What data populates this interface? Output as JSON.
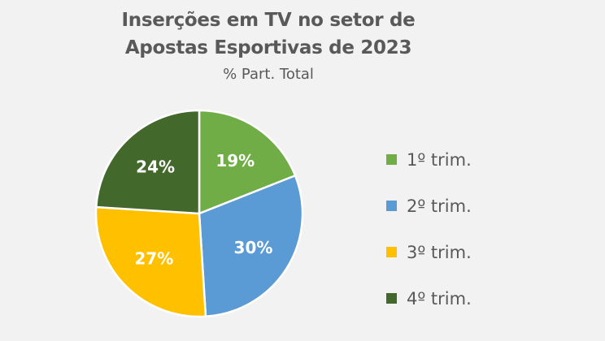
{
  "chart_data": {
    "type": "pie",
    "title": "Inserções em TV no setor de Apostas Esportivas de 2023",
    "title_lines": [
      "Inserções em TV no setor de",
      "Apostas Esportivas de 2023"
    ],
    "subtitle": "% Part. Total",
    "categories": [
      "1º trim.",
      "2º trim.",
      "3º trim.",
      "4º trim."
    ],
    "values": [
      19,
      30,
      27,
      24
    ],
    "labels": [
      "19%",
      "30%",
      "27%",
      "24%"
    ],
    "colors": [
      "#70ad47",
      "#5b9bd5",
      "#ffc000",
      "#43682b"
    ],
    "start_angle": "12 o'clock",
    "direction": "clockwise",
    "legend_position": "right"
  },
  "legend": {
    "items": [
      {
        "label": "1º trim.",
        "color": "#70ad47"
      },
      {
        "label": "2º trim.",
        "color": "#5b9bd5"
      },
      {
        "label": "3º trim.",
        "color": "#ffc000"
      },
      {
        "label": "4º trim.",
        "color": "#43682b"
      }
    ]
  }
}
